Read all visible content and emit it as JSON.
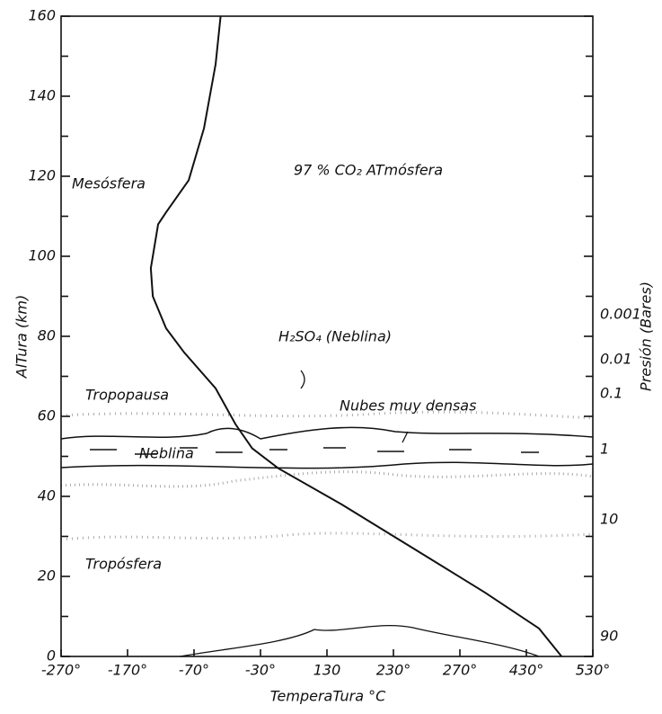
{
  "chart_data": {
    "type": "line",
    "title": "97 % CO₂ ATmósfera",
    "xlabel": "TemperaTura °C",
    "ylabel": "AlTura (km)",
    "y2label": "Presión (Bares)",
    "xlim": [
      -270,
      530
    ],
    "xticks": [
      {
        "value": -270,
        "label": "-270°"
      },
      {
        "value": -170,
        "label": "-170°"
      },
      {
        "value": -70,
        "label": "-70°"
      },
      {
        "value": -30,
        "label": "-30°"
      },
      130,
      {
        "value": 230,
        "label": "230°"
      },
      {
        "value": 270,
        "label": "270°"
      },
      {
        "value": 430,
        "label": "430°"
      },
      {
        "value": 530,
        "label": "530°"
      }
    ],
    "ylim": [
      0,
      160
    ],
    "yticks": [
      0,
      20,
      40,
      60,
      80,
      100,
      120,
      140,
      160
    ],
    "pressure_labels": [
      "0.001",
      "0.01",
      "0.1",
      "1",
      "10",
      "90"
    ],
    "annotations": [
      "Mesósfera",
      "Tropopausa",
      "H₂SO₄ (Neblina)",
      "Nubes muy densas",
      "Neblina",
      "Tropósfera"
    ],
    "series": [
      {
        "color": "#111111",
        "x": [
          -54,
          -57,
          -64,
          -78,
          -112,
          -124,
          -135,
          -132,
          -112,
          -85,
          -57,
          -45,
          -35,
          13,
          152,
          242,
          330,
          449,
          483
        ],
        "values": [
          160,
          148,
          132,
          119,
          111,
          108,
          97,
          90,
          82,
          76,
          67,
          58,
          52,
          47,
          38,
          27,
          16,
          7,
          0
        ]
      }
    ]
  }
}
